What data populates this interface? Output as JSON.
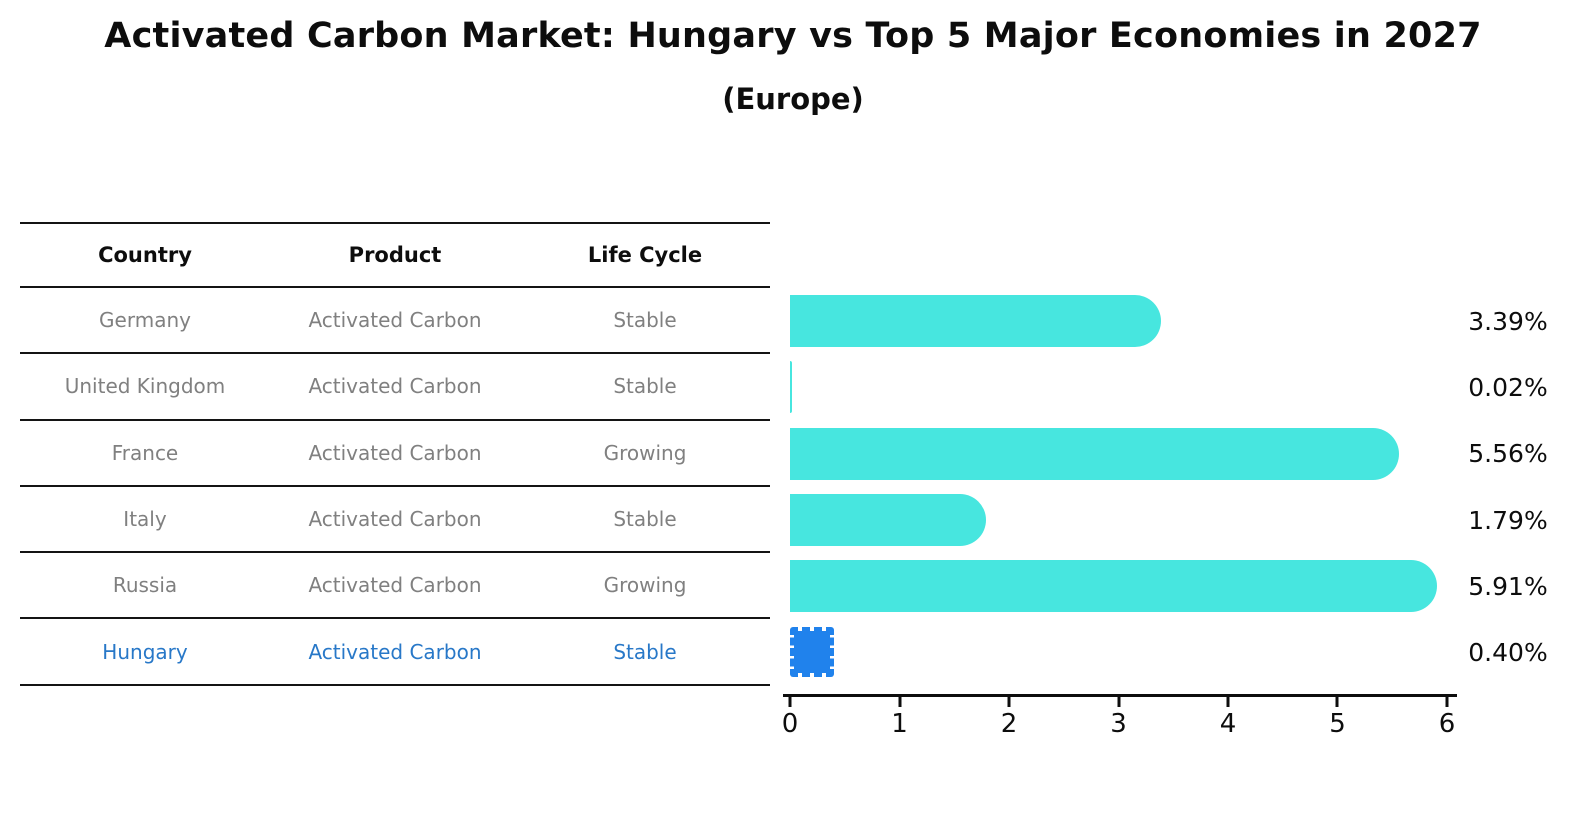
{
  "title": "Activated Carbon Market: Hungary vs Top 5 Major Economies in 2027",
  "subtitle": "(Europe)",
  "table": {
    "headers": [
      "Country",
      "Product",
      "Life Cycle"
    ],
    "rows": [
      {
        "country": "Germany",
        "product": "Activated Carbon",
        "life_cycle": "Stable",
        "highlighted": false
      },
      {
        "country": "United Kingdom",
        "product": "Activated Carbon",
        "life_cycle": "Stable",
        "highlighted": false
      },
      {
        "country": "France",
        "product": "Activated Carbon",
        "life_cycle": "Growing",
        "highlighted": false
      },
      {
        "country": "Italy",
        "product": "Activated Carbon",
        "life_cycle": "Stable",
        "highlighted": false
      },
      {
        "country": "Russia",
        "product": "Activated Carbon",
        "life_cycle": "Growing",
        "highlighted": false
      },
      {
        "country": "Hungary",
        "product": "Activated Carbon",
        "life_cycle": "Stable",
        "highlighted": true
      }
    ]
  },
  "chart_data": {
    "type": "bar",
    "orientation": "horizontal",
    "title": "Activated Carbon Market: Hungary vs Top 5 Major Economies in 2027 (Europe)",
    "categories": [
      "Germany",
      "United Kingdom",
      "France",
      "Italy",
      "Russia",
      "Hungary"
    ],
    "values": [
      3.39,
      0.02,
      5.56,
      1.79,
      5.91,
      0.4
    ],
    "value_labels": [
      "3.39%",
      "0.02%",
      "5.56%",
      "1.79%",
      "5.91%",
      "0.40%"
    ],
    "xlim": [
      0,
      6
    ],
    "x_ticks": [
      "0",
      "1",
      "2",
      "3",
      "4",
      "5",
      "6"
    ],
    "grid": false,
    "legend": false,
    "highlight_index": 5,
    "bar_color": "#47e6df",
    "highlight_bar_color": "#2082ec",
    "highlight_text_color": "#2878c8"
  }
}
